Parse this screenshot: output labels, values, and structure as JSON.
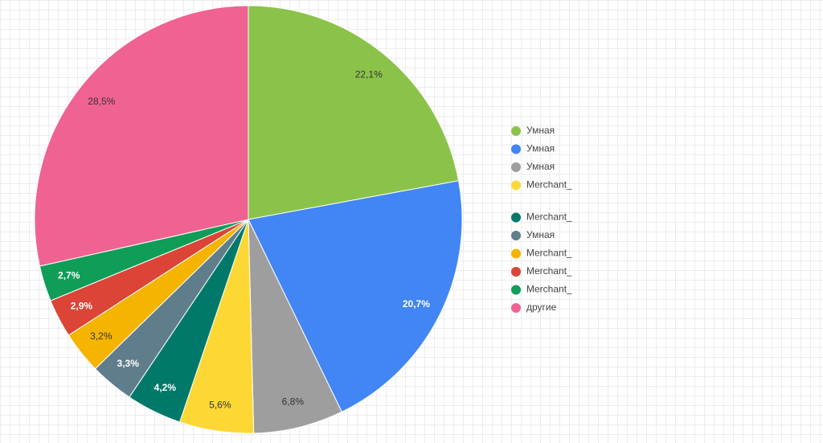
{
  "chart_data": {
    "type": "pie",
    "categories": [
      "Умная",
      "Умная",
      "Умная",
      "Merchant_",
      "Merchant_",
      "Умная",
      "Merchant_",
      "Merchant_",
      "Merchant_",
      "другие"
    ],
    "values": [
      22.1,
      20.7,
      6.8,
      5.6,
      4.2,
      3.3,
      3.2,
      2.9,
      2.7,
      28.5
    ],
    "value_labels": [
      "22,1%",
      "20,7%",
      "6,8%",
      "5,6%",
      "4,2%",
      "3,3%",
      "3,2%",
      "2,9%",
      "2,7%",
      "28,5%"
    ],
    "colors": [
      "#8bc34a",
      "#4285f4",
      "#9e9e9e",
      "#fdd835",
      "#00796b",
      "#607d8b",
      "#f4b400",
      "#db4437",
      "#0f9d58",
      "#f06292"
    ],
    "legend": "right"
  }
}
